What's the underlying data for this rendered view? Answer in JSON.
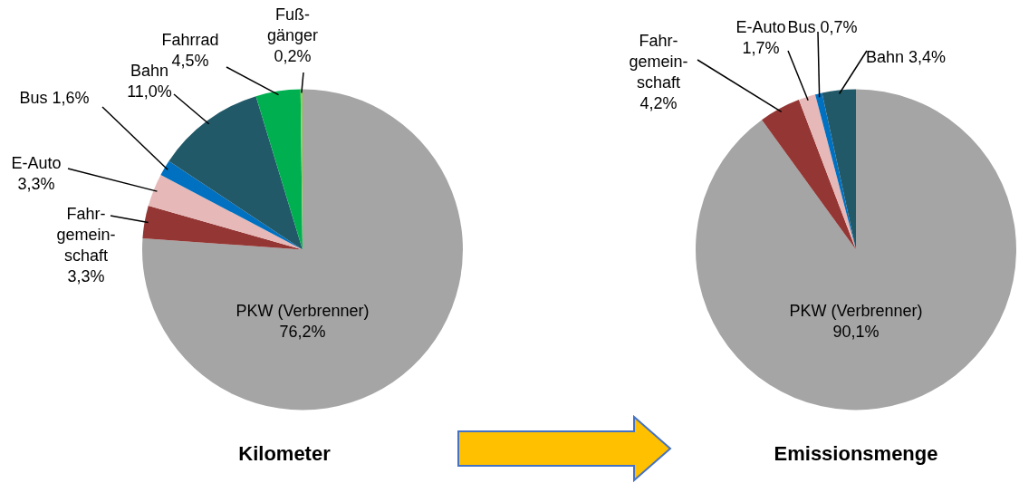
{
  "chart_data": [
    {
      "type": "pie",
      "title": "Kilometer",
      "categories": [
        "PKW (Verbrenner)",
        "Fahr-\ngemein-\nschaft",
        "E-Auto",
        "Bus",
        "Bahn",
        "Fahrrad",
        "Fuß-\ngänger"
      ],
      "values": [
        76.2,
        3.3,
        3.3,
        1.6,
        11.0,
        4.5,
        0.2
      ],
      "value_labels": [
        "76,2%",
        "3,3%",
        "3,3%",
        "1,6%",
        "11,0%",
        "4,5%",
        "0,2%"
      ],
      "colors": [
        "#a5a5a5",
        "#943634",
        "#e6b9b8",
        "#0070c0",
        "#215968",
        "#00b050",
        "#92d050"
      ]
    },
    {
      "type": "pie",
      "title": "Emissionsmenge",
      "categories": [
        "PKW (Verbrenner)",
        "Fahr-\ngemein-\nschaft",
        "E-Auto",
        "Bus",
        "Bahn"
      ],
      "values": [
        90.1,
        4.2,
        1.7,
        0.7,
        3.4
      ],
      "value_labels": [
        "90,1%",
        "4,2%",
        "1,7%",
        "0,7%",
        "3,4%"
      ],
      "colors": [
        "#a5a5a5",
        "#943634",
        "#e6b9b8",
        "#0070c0",
        "#215968"
      ]
    }
  ]
}
